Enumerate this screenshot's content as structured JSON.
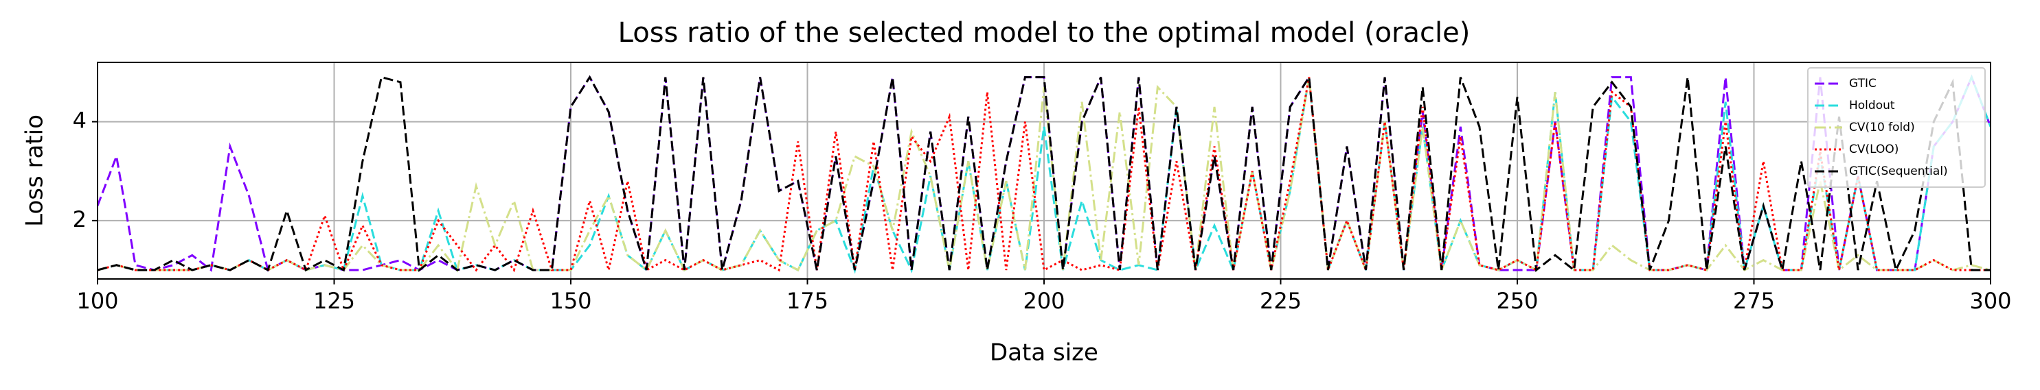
{
  "chart_data": {
    "type": "line",
    "title": "Loss ratio of the selected model to the optimal model (oracle)",
    "xlabel": "Data size",
    "ylabel": "Loss ratio",
    "x": [
      100,
      102,
      104,
      106,
      108,
      110,
      112,
      114,
      116,
      118,
      120,
      122,
      124,
      126,
      128,
      130,
      132,
      134,
      136,
      138,
      140,
      142,
      144,
      146,
      148,
      150,
      152,
      154,
      156,
      158,
      160,
      162,
      164,
      166,
      168,
      170,
      172,
      174,
      176,
      178,
      180,
      182,
      184,
      186,
      188,
      190,
      192,
      194,
      196,
      198,
      200,
      202,
      204,
      206,
      208,
      210,
      212,
      214,
      216,
      218,
      220,
      222,
      224,
      226,
      228,
      230,
      232,
      234,
      236,
      238,
      240,
      242,
      244,
      246,
      248,
      250,
      252,
      254,
      256,
      258,
      260,
      262,
      264,
      266,
      268,
      270,
      272,
      274,
      276,
      278,
      280,
      282,
      284,
      286,
      288,
      290,
      292,
      294,
      296,
      298,
      300
    ],
    "series": [
      {
        "name": "GTIC",
        "color": "#7f00ff",
        "dash": "14 6",
        "values": [
          2.3,
          3.3,
          1.1,
          1.0,
          1.1,
          1.3,
          1.0,
          3.5,
          2.5,
          1.0,
          1.2,
          1.0,
          1.1,
          1.0,
          1.0,
          1.1,
          1.2,
          1.0,
          1.2,
          1.0,
          1.1,
          1.0,
          1.2,
          1.0,
          1.0,
          4.3,
          4.9,
          4.2,
          2.2,
          1.0,
          4.9,
          1.0,
          4.9,
          1.0,
          2.4,
          4.9,
          2.6,
          2.8,
          1.0,
          3.3,
          1.0,
          2.8,
          4.9,
          1.0,
          3.8,
          1.0,
          4.1,
          1.0,
          3.2,
          4.9,
          4.9,
          1.0,
          4.0,
          4.9,
          1.0,
          4.9,
          1.0,
          4.3,
          1.0,
          3.3,
          1.0,
          4.3,
          1.0,
          4.3,
          4.9,
          1.0,
          3.5,
          1.0,
          4.9,
          1.0,
          4.2,
          1.0,
          3.9,
          1.1,
          1.0,
          1.0,
          1.0,
          4.0,
          1.0,
          1.0,
          4.9,
          4.9,
          1.0,
          1.0,
          1.1,
          1.0,
          4.9,
          1.0,
          2.3,
          1.0,
          1.0,
          4.9,
          1.0,
          2.9,
          1.0,
          1.0,
          1.0,
          3.5,
          4.0,
          4.9,
          3.9
        ]
      },
      {
        "name": "Holdout",
        "color": "#2adddd",
        "dash": "14 6",
        "values": [
          1.0,
          1.1,
          1.0,
          1.0,
          1.0,
          1.0,
          1.1,
          1.0,
          1.2,
          1.0,
          1.2,
          1.0,
          1.1,
          1.0,
          2.5,
          1.1,
          1.0,
          1.0,
          2.2,
          1.0,
          1.1,
          1.0,
          1.2,
          1.0,
          1.0,
          1.0,
          1.5,
          2.5,
          1.3,
          1.0,
          1.8,
          1.0,
          1.2,
          1.0,
          1.1,
          1.8,
          1.2,
          1.0,
          1.8,
          2.0,
          1.0,
          3.1,
          1.8,
          1.0,
          2.9,
          1.0,
          3.2,
          1.0,
          2.8,
          1.0,
          3.9,
          1.0,
          2.4,
          1.2,
          1.0,
          1.1,
          1.0,
          4.3,
          1.0,
          1.9,
          1.0,
          3.0,
          1.0,
          2.6,
          4.9,
          1.0,
          2.0,
          1.0,
          4.0,
          1.0,
          3.9,
          1.0,
          2.0,
          1.1,
          1.0,
          1.2,
          1.0,
          4.6,
          1.0,
          1.0,
          4.5,
          4.0,
          1.0,
          1.0,
          1.1,
          1.0,
          4.4,
          1.0,
          2.3,
          1.0,
          1.0,
          3.3,
          1.0,
          2.9,
          1.0,
          1.0,
          1.0,
          3.5,
          4.0,
          4.9,
          3.9
        ]
      },
      {
        "name": "CV(10 fold)",
        "color": "#d4e08a",
        "dash": "16 5 3 5",
        "values": [
          1.0,
          1.1,
          1.0,
          1.0,
          1.0,
          1.0,
          1.1,
          1.0,
          1.2,
          1.0,
          1.2,
          1.0,
          1.1,
          1.0,
          1.5,
          1.1,
          1.0,
          1.0,
          1.5,
          1.0,
          2.7,
          1.5,
          2.4,
          1.0,
          1.0,
          1.0,
          1.8,
          2.5,
          1.3,
          1.0,
          1.8,
          1.0,
          1.2,
          1.0,
          1.1,
          1.8,
          1.2,
          1.0,
          1.8,
          2.0,
          3.3,
          3.1,
          1.8,
          3.8,
          2.9,
          1.0,
          3.2,
          1.0,
          2.8,
          1.0,
          4.7,
          1.0,
          4.4,
          1.2,
          4.2,
          1.1,
          4.7,
          4.3,
          1.0,
          4.3,
          1.0,
          3.0,
          1.0,
          2.6,
          4.9,
          1.0,
          2.0,
          1.0,
          4.0,
          1.0,
          3.9,
          1.0,
          2.0,
          1.1,
          1.0,
          1.2,
          1.0,
          4.6,
          1.0,
          1.0,
          1.5,
          1.2,
          1.0,
          1.0,
          1.1,
          1.0,
          1.5,
          1.0,
          1.2,
          1.0,
          1.0,
          2.8,
          1.0,
          1.3,
          1.0,
          1.0,
          1.0,
          1.2,
          1.0,
          1.1,
          1.0
        ]
      },
      {
        "name": "CV(LOO)",
        "color": "#ff0000",
        "dash": "3 4",
        "values": [
          1.0,
          1.1,
          1.0,
          1.0,
          1.0,
          1.0,
          1.1,
          1.0,
          1.2,
          1.0,
          1.2,
          1.0,
          2.1,
          1.0,
          1.9,
          1.1,
          1.0,
          1.0,
          2.0,
          1.5,
          1.0,
          1.5,
          1.0,
          2.2,
          1.0,
          1.0,
          2.4,
          1.0,
          2.8,
          1.0,
          1.2,
          1.0,
          1.2,
          1.0,
          1.1,
          1.2,
          1.0,
          3.6,
          1.0,
          3.8,
          1.0,
          3.6,
          1.0,
          3.7,
          3.2,
          4.1,
          1.0,
          4.6,
          1.0,
          4.0,
          1.0,
          1.2,
          1.0,
          1.1,
          1.0,
          4.3,
          1.0,
          3.2,
          1.0,
          3.5,
          1.0,
          3.0,
          1.0,
          2.8,
          4.9,
          1.0,
          2.0,
          1.0,
          4.0,
          1.0,
          4.3,
          1.0,
          3.7,
          1.1,
          1.0,
          1.2,
          1.0,
          4.0,
          1.0,
          1.0,
          4.6,
          4.3,
          1.0,
          1.0,
          1.1,
          1.0,
          4.0,
          1.0,
          3.2,
          1.0,
          1.0,
          3.4,
          1.0,
          2.9,
          1.0,
          1.0,
          1.0,
          1.2,
          1.0,
          1.0,
          1.0
        ]
      },
      {
        "name": "GTIC(Sequential)",
        "color": "#000000",
        "dash": "14 6",
        "values": [
          1.0,
          1.1,
          1.0,
          1.0,
          1.2,
          1.0,
          1.1,
          1.0,
          1.2,
          1.0,
          2.2,
          1.0,
          1.2,
          1.0,
          3.2,
          4.9,
          4.8,
          1.0,
          1.3,
          1.0,
          1.1,
          1.0,
          1.2,
          1.0,
          1.0,
          4.3,
          4.9,
          4.2,
          2.2,
          1.0,
          4.9,
          1.0,
          4.9,
          1.0,
          2.4,
          4.9,
          2.6,
          2.8,
          1.0,
          3.3,
          1.0,
          2.8,
          4.9,
          1.0,
          3.8,
          1.0,
          4.1,
          1.0,
          3.2,
          4.9,
          4.9,
          1.0,
          4.0,
          4.9,
          1.0,
          4.9,
          1.0,
          4.3,
          1.0,
          3.3,
          1.0,
          4.3,
          1.0,
          4.3,
          4.9,
          1.0,
          3.5,
          1.0,
          4.9,
          1.0,
          4.7,
          1.0,
          4.9,
          3.9,
          1.0,
          4.5,
          1.0,
          1.3,
          1.0,
          4.3,
          4.8,
          4.3,
          1.0,
          2.0,
          4.9,
          1.0,
          3.5,
          1.0,
          2.3,
          1.0,
          3.2,
          1.0,
          4.1,
          1.0,
          2.8,
          1.0,
          1.8,
          4.0,
          4.8,
          1.0,
          1.0
        ]
      }
    ],
    "xlim": [
      100,
      300
    ],
    "xticks": [
      100,
      125,
      150,
      175,
      200,
      225,
      250,
      275,
      300
    ],
    "ylim": [
      0.82,
      5.2
    ],
    "yticks": [
      2,
      4
    ],
    "grid": true,
    "legend": "upper right"
  }
}
